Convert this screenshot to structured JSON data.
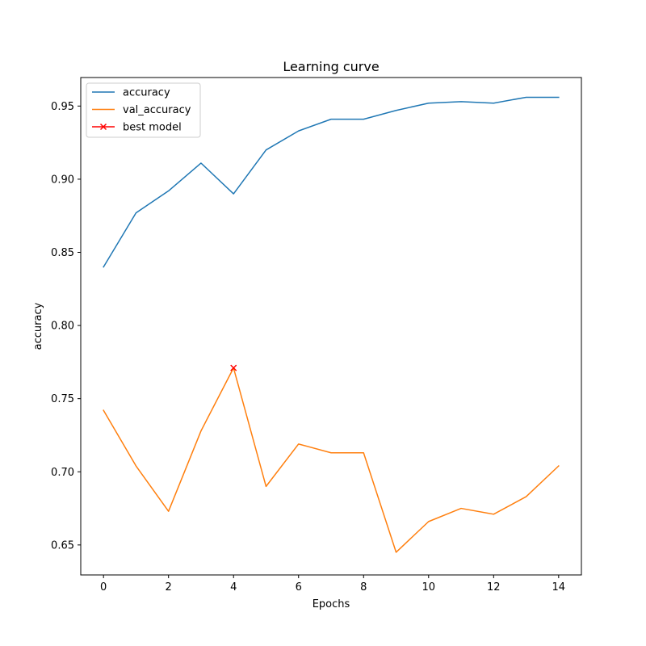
{
  "chart_data": {
    "type": "line",
    "title": "Learning curve",
    "xlabel": "Epochs",
    "ylabel": "accuracy",
    "xlim": [
      -0.7,
      14.7
    ],
    "ylim": [
      0.6295,
      0.9695
    ],
    "xticks": [
      0,
      2,
      4,
      6,
      8,
      10,
      12,
      14
    ],
    "yticks": [
      0.65,
      0.7,
      0.75,
      0.8,
      0.85,
      0.9,
      0.95
    ],
    "ytick_labels": [
      "0.65",
      "0.70",
      "0.75",
      "0.80",
      "0.85",
      "0.90",
      "0.95"
    ],
    "grid": false,
    "legend_position": "upper-left",
    "x": [
      0,
      1,
      2,
      3,
      4,
      5,
      6,
      7,
      8,
      9,
      10,
      11,
      12,
      13,
      14
    ],
    "series": [
      {
        "name": "accuracy",
        "color": "#1f77b4",
        "values": [
          0.84,
          0.877,
          0.892,
          0.911,
          0.89,
          0.92,
          0.933,
          0.941,
          0.941,
          0.947,
          0.952,
          0.953,
          0.952,
          0.956,
          0.956
        ]
      },
      {
        "name": "val_accuracy",
        "color": "#ff7f0e",
        "values": [
          0.742,
          0.704,
          0.673,
          0.728,
          0.771,
          0.69,
          0.719,
          0.713,
          0.713,
          0.645,
          0.666,
          0.675,
          0.671,
          0.683,
          0.704
        ]
      }
    ],
    "markers": [
      {
        "name": "best model",
        "color": "#ff0000",
        "symbol": "x",
        "x": 4,
        "y": 0.771
      }
    ]
  }
}
